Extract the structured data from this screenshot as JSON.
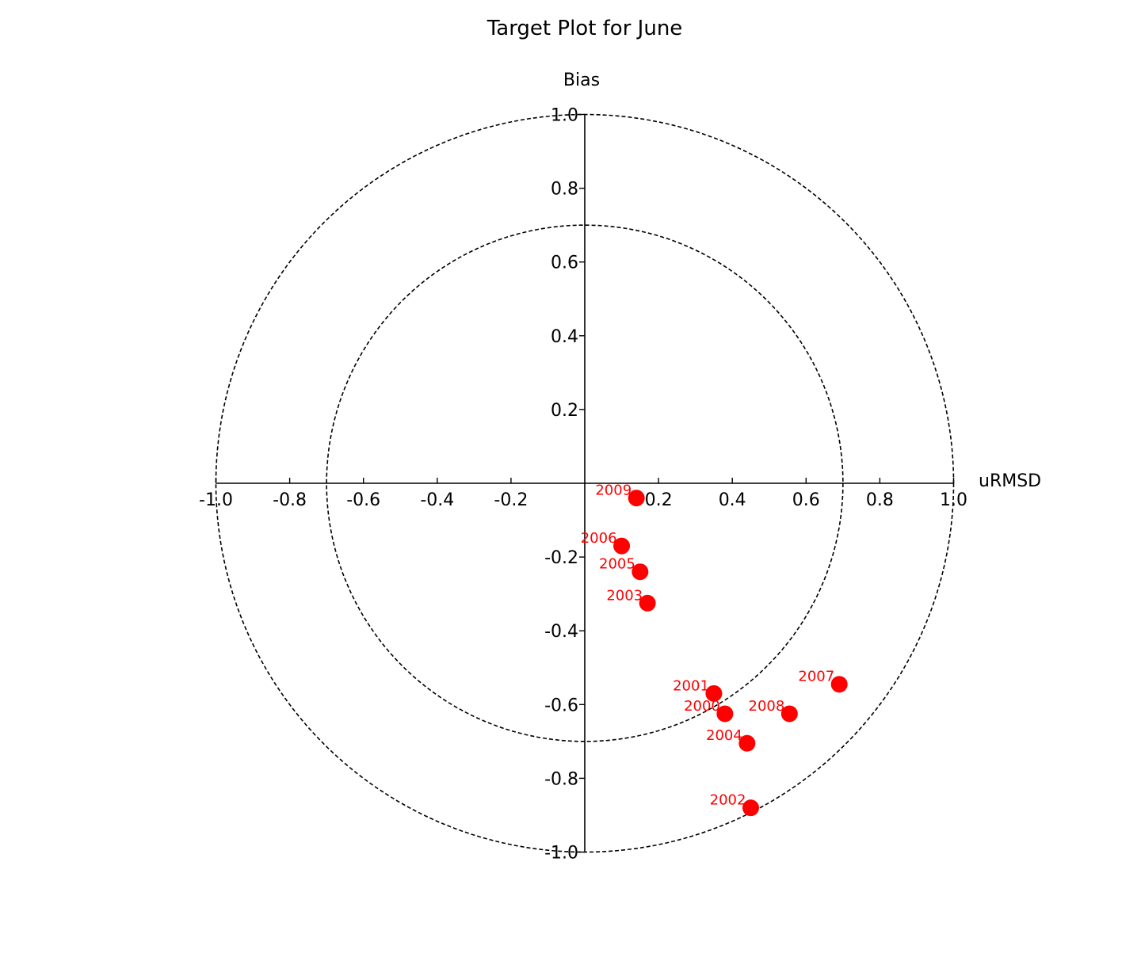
{
  "chart_data": {
    "type": "scatter",
    "title": "Target Plot for June",
    "xlabel": "uRMSD",
    "ylabel": "Bias",
    "xlim": [
      -1.0,
      1.0
    ],
    "ylim": [
      -1.0,
      1.0
    ],
    "xticks": [
      "-1.0",
      "-0.8",
      "-0.6",
      "-0.4",
      "-0.2",
      "0.2",
      "0.4",
      "0.6",
      "0.8",
      "1.0"
    ],
    "yticks": [
      "1.0",
      "0.8",
      "0.6",
      "0.4",
      "0.2",
      "-0.2",
      "-0.4",
      "-0.6",
      "-0.8",
      "-1.0"
    ],
    "circles": [
      0.7,
      1.0
    ],
    "grid": false,
    "marker_color": "#ff0000",
    "points": [
      {
        "label": "2009",
        "x": 0.14,
        "y": -0.04
      },
      {
        "label": "2006",
        "x": 0.1,
        "y": -0.17
      },
      {
        "label": "2005",
        "x": 0.15,
        "y": -0.24
      },
      {
        "label": "2003",
        "x": 0.17,
        "y": -0.325
      },
      {
        "label": "2001",
        "x": 0.35,
        "y": -0.57
      },
      {
        "label": "2000",
        "x": 0.38,
        "y": -0.625
      },
      {
        "label": "2007",
        "x": 0.69,
        "y": -0.545
      },
      {
        "label": "2008",
        "x": 0.555,
        "y": -0.625
      },
      {
        "label": "2004",
        "x": 0.44,
        "y": -0.705
      },
      {
        "label": "2002",
        "x": 0.45,
        "y": -0.88
      }
    ]
  }
}
